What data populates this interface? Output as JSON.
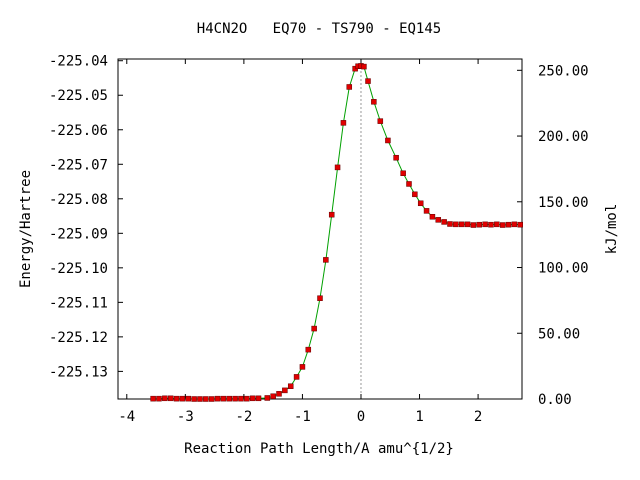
{
  "chart_data": {
    "type": "line",
    "title": "H4CN2O   EQ70 - TS790 - EQ145",
    "xlabel": "Reaction Path Length/A amu^{1/2}",
    "ylabel": "Energy/Hartree",
    "y2label": "kJ/mol",
    "xlim": [
      -4.15,
      2.75
    ],
    "ylim": [
      -225.138,
      -225.0395
    ],
    "y2lim": [
      0,
      258.6
    ],
    "xticks": [
      "-4",
      "-3",
      "-2",
      "-1",
      "0",
      "1",
      "2"
    ],
    "xtick_values": [
      -4,
      -3,
      -2,
      -1,
      0,
      1,
      2
    ],
    "yticks": [
      "-225.04",
      "-225.05",
      "-225.06",
      "-225.07",
      "-225.08",
      "-225.09",
      "-225.10",
      "-225.11",
      "-225.12",
      "-225.13"
    ],
    "ytick_values": [
      -225.04,
      -225.05,
      -225.06,
      -225.07,
      -225.08,
      -225.09,
      -225.1,
      -225.11,
      -225.12,
      -225.13
    ],
    "y2ticks": [
      "0.00",
      "50.00",
      "100.00",
      "150.00",
      "200.00",
      "250.00"
    ],
    "y2tick_values": [
      0,
      50,
      100,
      150,
      200,
      250
    ],
    "ts_marker_x": 0.0,
    "line_color": "#00a000",
    "point_color": "#e00000",
    "series": [
      {
        "points": [
          [
            -3.55,
            -225.1379
          ],
          [
            -3.45,
            -225.1379
          ],
          [
            -3.35,
            -225.1378
          ],
          [
            -3.25,
            -225.1378
          ],
          [
            -3.15,
            -225.1379
          ],
          [
            -3.05,
            -225.1379
          ],
          [
            -2.95,
            -225.1379
          ],
          [
            -2.85,
            -225.138
          ],
          [
            -2.75,
            -225.138
          ],
          [
            -2.65,
            -225.138
          ],
          [
            -2.55,
            -225.138
          ],
          [
            -2.45,
            -225.1379
          ],
          [
            -2.35,
            -225.1379
          ],
          [
            -2.25,
            -225.1379
          ],
          [
            -2.15,
            -225.1379
          ],
          [
            -2.05,
            -225.1379
          ],
          [
            -1.95,
            -225.1379
          ],
          [
            -1.85,
            -225.1378
          ],
          [
            -1.75,
            -225.1378
          ],
          [
            -1.6,
            -225.1377
          ],
          [
            -1.5,
            -225.1372
          ],
          [
            -1.4,
            -225.1365
          ],
          [
            -1.3,
            -225.1355
          ],
          [
            -1.2,
            -225.1343
          ],
          [
            -1.1,
            -225.1316
          ],
          [
            -1.0,
            -225.1287
          ],
          [
            -0.9,
            -225.1237
          ],
          [
            -0.8,
            -225.1176
          ],
          [
            -0.7,
            -225.1088
          ],
          [
            -0.6,
            -225.0977
          ],
          [
            -0.5,
            -225.0846
          ],
          [
            -0.4,
            -225.0709
          ],
          [
            -0.3,
            -225.058
          ],
          [
            -0.2,
            -225.0476
          ],
          [
            -0.1,
            -225.0423
          ],
          [
            -0.05,
            -225.0416
          ],
          [
            0.0,
            -225.0415
          ],
          [
            0.05,
            -225.0417
          ],
          [
            0.12,
            -225.0459
          ],
          [
            0.22,
            -225.0519
          ],
          [
            0.33,
            -225.0575
          ],
          [
            0.46,
            -225.0631
          ],
          [
            0.6,
            -225.0681
          ],
          [
            0.72,
            -225.0726
          ],
          [
            0.82,
            -225.0757
          ],
          [
            0.92,
            -225.0787
          ],
          [
            1.02,
            -225.0813
          ],
          [
            1.12,
            -225.0835
          ],
          [
            1.22,
            -225.0852
          ],
          [
            1.32,
            -225.0861
          ],
          [
            1.42,
            -225.0867
          ],
          [
            1.52,
            -225.0873
          ],
          [
            1.62,
            -225.0874
          ],
          [
            1.72,
            -225.0874
          ],
          [
            1.82,
            -225.0874
          ],
          [
            1.92,
            -225.0876
          ],
          [
            2.02,
            -225.0875
          ],
          [
            2.12,
            -225.0874
          ],
          [
            2.22,
            -225.0875
          ],
          [
            2.32,
            -225.0874
          ],
          [
            2.42,
            -225.0876
          ],
          [
            2.52,
            -225.0875
          ],
          [
            2.62,
            -225.0874
          ],
          [
            2.72,
            -225.0875
          ]
        ]
      }
    ]
  }
}
